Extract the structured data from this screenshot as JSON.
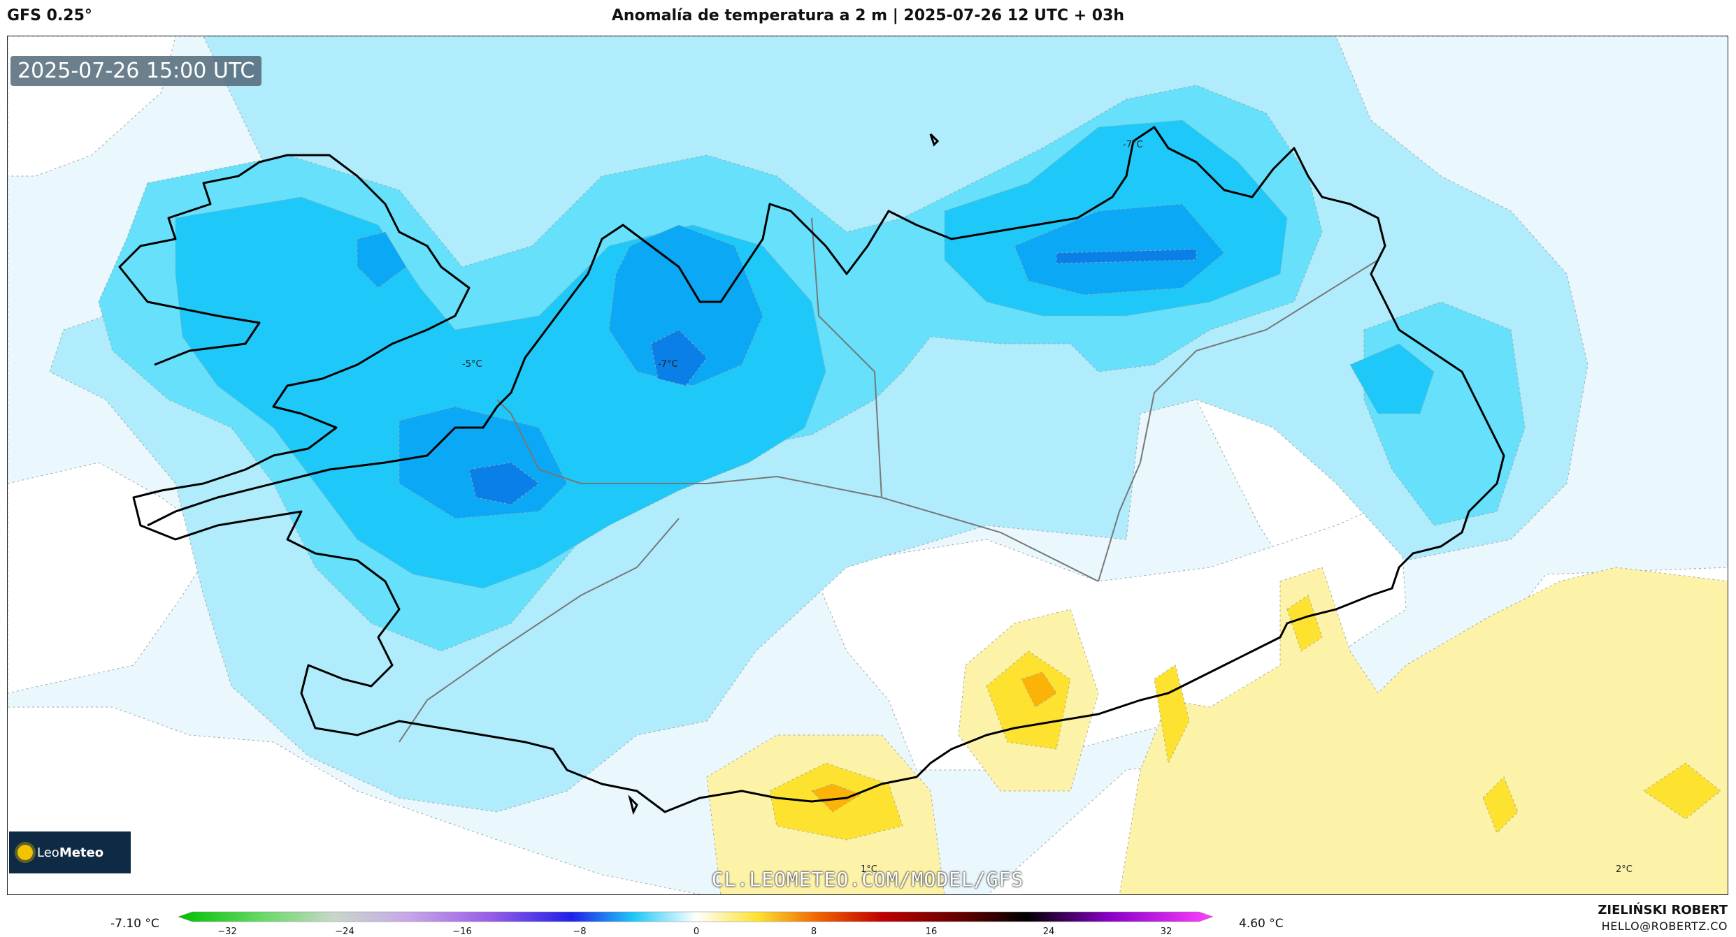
{
  "header": {
    "model": "GFS 0.25°",
    "title": "Anomalía de temperatura a 2 m | 2025-07-26 12 UTC + 03h"
  },
  "map": {
    "timestamp": "2025-07-26 15:00 UTC",
    "watermark": "CL.LEOMETEO.COM/MODEL/GFS",
    "contour_labels": [
      "-5°C",
      "-7°C",
      "-7°C",
      "1°C",
      "2°C"
    ],
    "palette": {
      "very_light_blue": "#eaf7fd",
      "light_blue": "#b0ecfb",
      "sky_blue": "#66e0fb",
      "cyan": "#1ec8f8",
      "blue": "#0aa8f5",
      "deep_blue": "#0a7fe8",
      "light_yellow": "#fdf3a8",
      "yellow": "#fde230",
      "orange": "#fbb308"
    }
  },
  "logo": {
    "brand_light": "Leo",
    "brand_bold": "Meteo"
  },
  "colorbar": {
    "min_label": "-7.10 °C",
    "max_label": "4.60 °C",
    "ticks": [
      "−32",
      "−24",
      "−16",
      "−8",
      "0",
      "8",
      "16",
      "24",
      "32"
    ]
  },
  "footer": {
    "author": "ZIELIŃSKI ROBERT",
    "email": "HELLO@ROBERTZ.CO"
  }
}
